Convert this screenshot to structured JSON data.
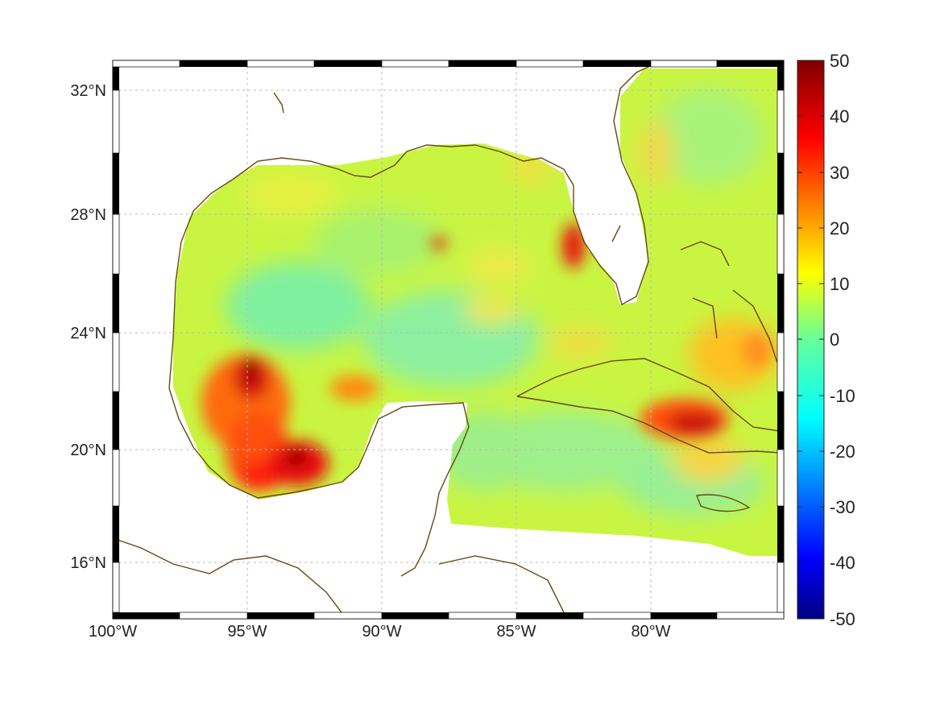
{
  "map": {
    "x_ticks": [
      "100°W",
      "95°W",
      "90°W",
      "85°W",
      "80°W"
    ],
    "y_ticks": [
      "32°N",
      "28°N",
      "24°N",
      "20°N",
      "16°N"
    ],
    "lon_range": [
      -100,
      -75
    ],
    "lat_range": [
      14.7,
      32.8
    ],
    "coastline_color": "#6b4712",
    "grid": true
  },
  "colorbar": {
    "ticks": [
      "50",
      "40",
      "30",
      "20",
      "10",
      "0",
      "-10",
      "-20",
      "-30",
      "-40",
      "-50"
    ],
    "range": [
      -50,
      50
    ],
    "colormap": "jet"
  },
  "chart_data": {
    "type": "heatmap",
    "title": "",
    "xlabel": "",
    "ylabel": "",
    "xlim": [
      -100,
      -75
    ],
    "ylim": [
      14.7,
      32.8
    ],
    "value_range": [
      -50,
      50
    ],
    "notable_regions": [
      {
        "lon": -95.0,
        "lat": 22.5,
        "value": 45
      },
      {
        "lon": -93.2,
        "lat": 19.8,
        "value": 45
      },
      {
        "lon": -82.8,
        "lat": 27.0,
        "value": 35
      },
      {
        "lon": -78.8,
        "lat": 20.8,
        "value": 38
      },
      {
        "lon": -87.8,
        "lat": 27.1,
        "value": 30
      },
      {
        "lon": -80.0,
        "lat": 30.0,
        "value": 15
      },
      {
        "lon": -90.0,
        "lat": 25.0,
        "value": 3
      }
    ]
  }
}
